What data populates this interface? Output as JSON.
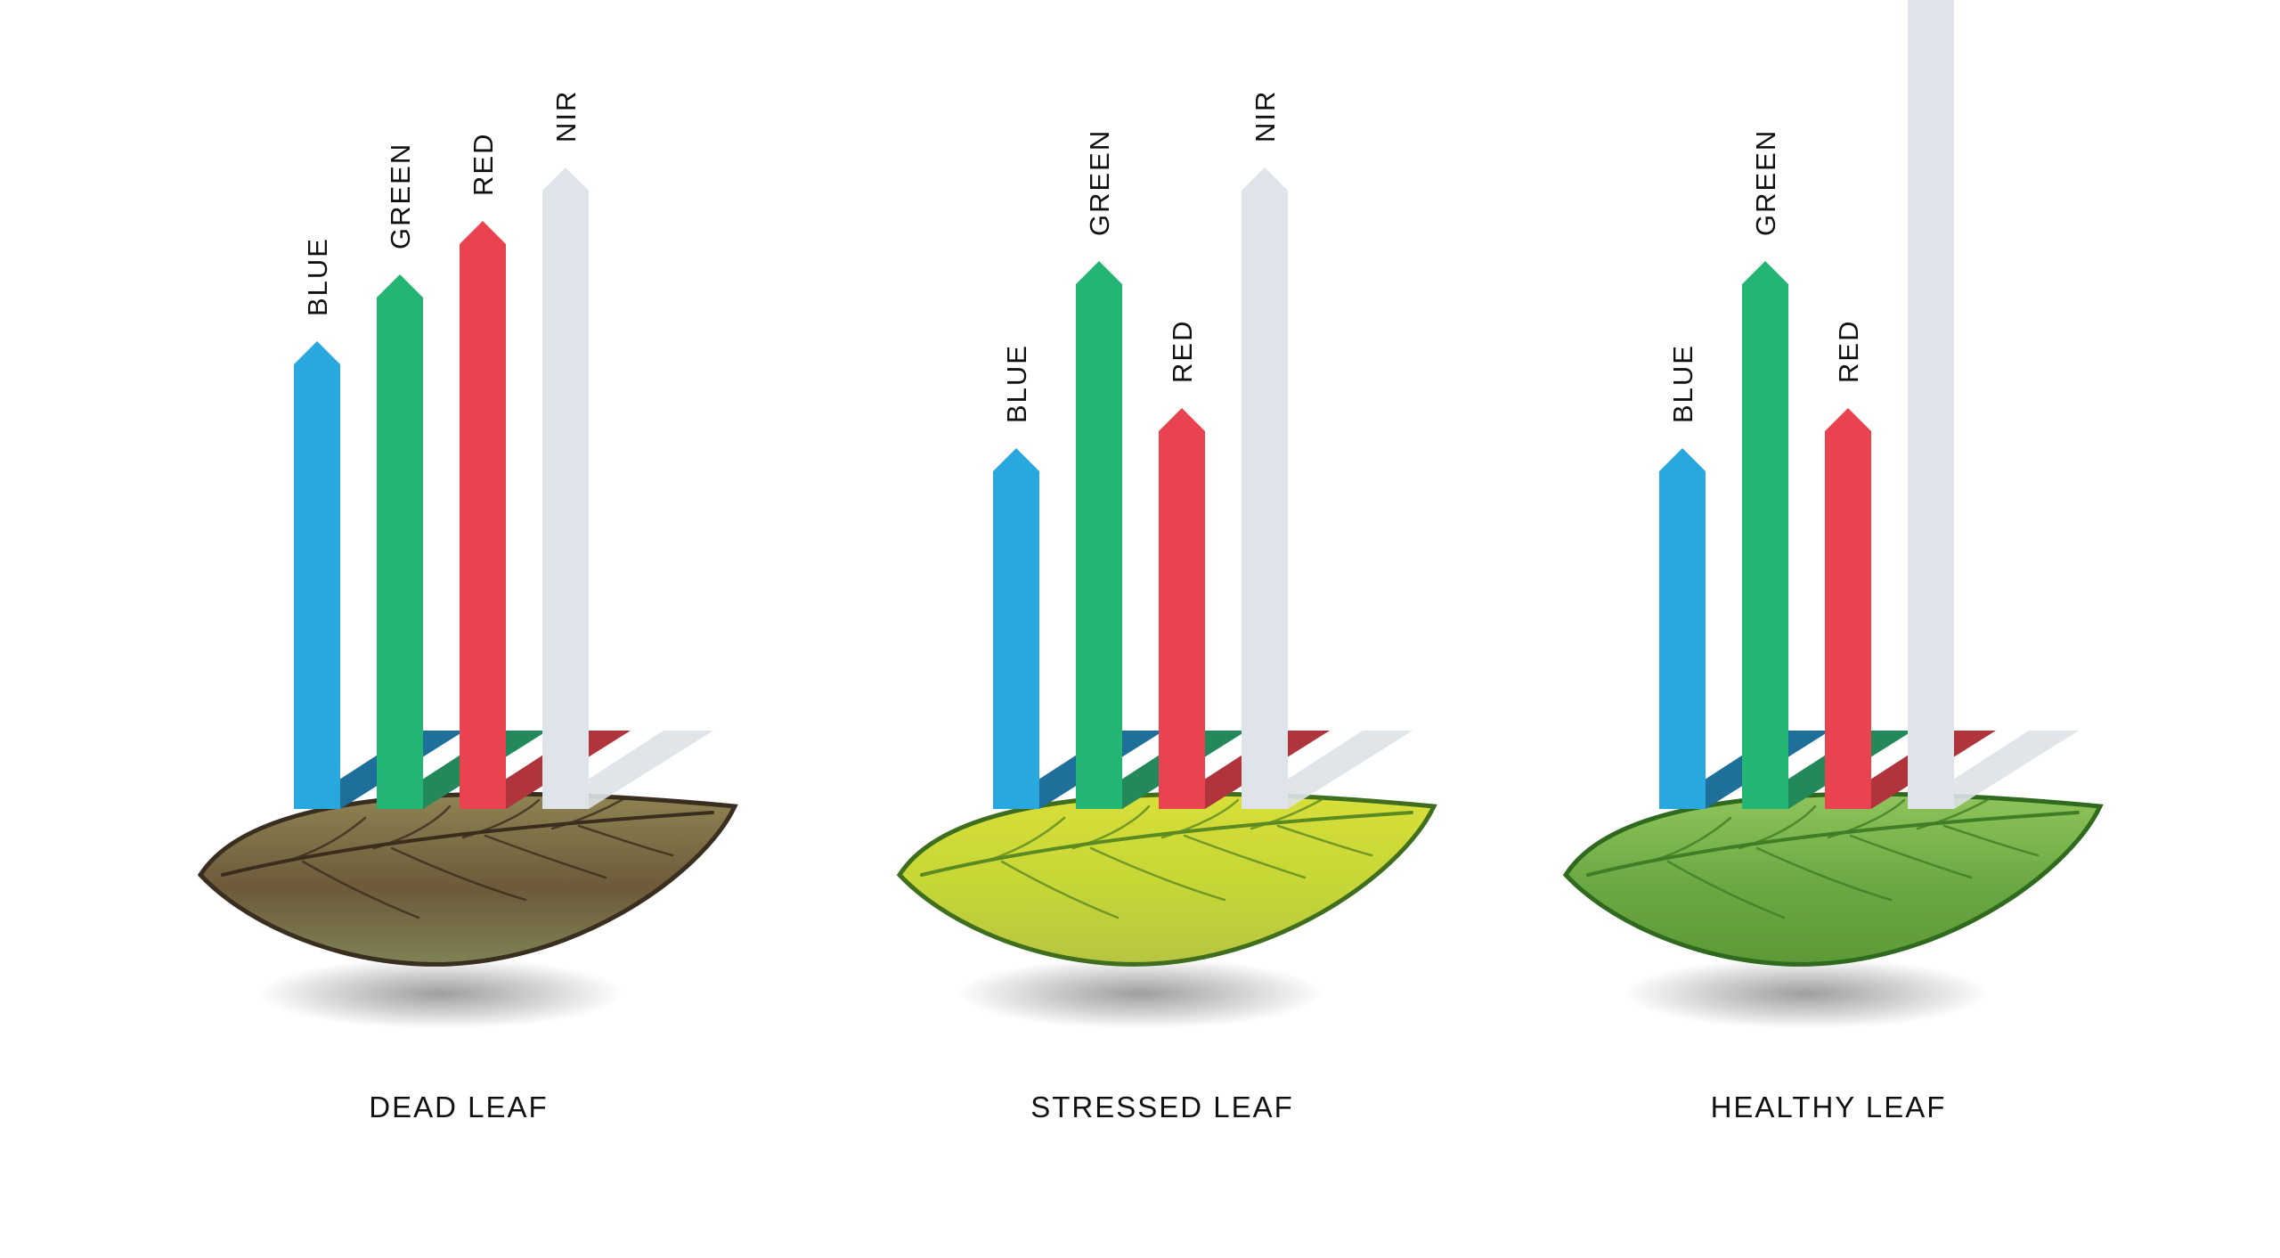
{
  "colors": {
    "blue": "#29a8e0",
    "green": "#22b573",
    "red": "#e8434f",
    "nir": "#dfe4ea",
    "blue_reflect": "#1e6f9a",
    "green_reflect": "#23895a",
    "red_reflect": "#b0343c",
    "nir_reflect": "#dde2e8"
  },
  "band_keys": [
    "blue",
    "green",
    "red",
    "nir"
  ],
  "bands": {
    "blue": "BLUE",
    "green": "GREEN",
    "red": "RED",
    "nir": "NIR"
  },
  "chart_data": {
    "type": "bar",
    "categories": [
      "DEAD LEAF",
      "STRESSED LEAF",
      "HEALTHY LEAF"
    ],
    "series": [
      {
        "name": "BLUE",
        "values": [
          0.35,
          0.27,
          0.27
        ]
      },
      {
        "name": "GREEN",
        "values": [
          0.4,
          0.41,
          0.41
        ]
      },
      {
        "name": "RED",
        "values": [
          0.44,
          0.3,
          0.3
        ]
      },
      {
        "name": "NIR",
        "values": [
          0.48,
          0.48,
          0.72
        ]
      }
    ]
  },
  "leaves": [
    {
      "label": "DEAD LEAF",
      "fill_top": "#8f8453",
      "fill_mid": "#6d5a3a",
      "fill_bottom": "#7f8254",
      "edge": "#3a2e20",
      "vein": "#3b2d1e"
    },
    {
      "label": "STRESSED LEAF",
      "fill_top": "#d8df3a",
      "fill_mid": "#c5d636",
      "fill_bottom": "#b7c542",
      "edge": "#3f6e1e",
      "vein": "#5b8a20"
    },
    {
      "label": "HEALTHY LEAF",
      "fill_top": "#8fc45a",
      "fill_mid": "#6aa843",
      "fill_bottom": "#5d9a37",
      "edge": "#2f6a1e",
      "vein": "#3f7d26"
    }
  ]
}
